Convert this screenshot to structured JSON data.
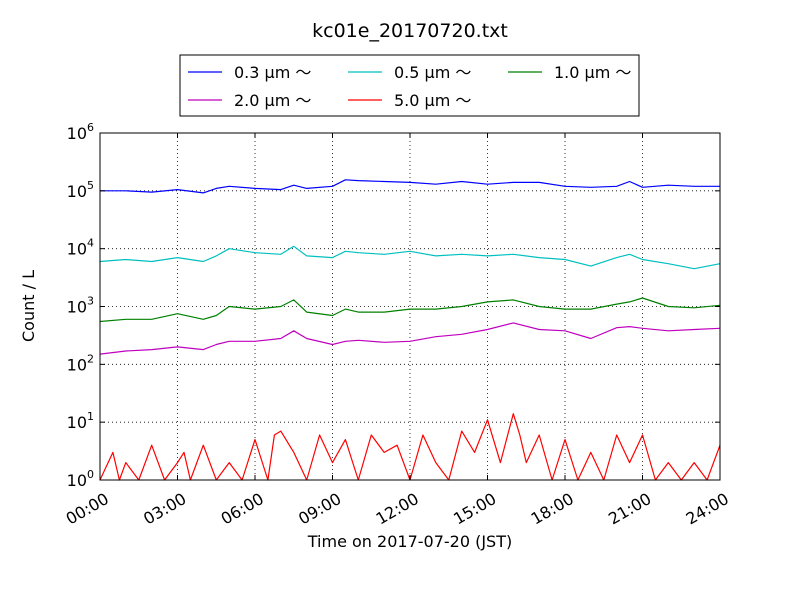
{
  "chart_data": {
    "type": "line",
    "title": "kc01e_20170720.txt",
    "xlabel": "Time on 2017-07-20 (JST)",
    "ylabel": "Count / L",
    "yscale": "log",
    "ylim": [
      1,
      1000000
    ],
    "xlim": [
      "00:00",
      "24:00"
    ],
    "x_ticks": [
      "00:00",
      "03:00",
      "06:00",
      "09:00",
      "12:00",
      "15:00",
      "18:00",
      "21:00",
      "24:00"
    ],
    "y_ticks": [
      {
        "base": "10",
        "exp": "0",
        "value": 1
      },
      {
        "base": "10",
        "exp": "1",
        "value": 10
      },
      {
        "base": "10",
        "exp": "2",
        "value": 100
      },
      {
        "base": "10",
        "exp": "3",
        "value": 1000
      },
      {
        "base": "10",
        "exp": "4",
        "value": 10000
      },
      {
        "base": "10",
        "exp": "5",
        "value": 100000
      },
      {
        "base": "10",
        "exp": "6",
        "value": 1000000
      }
    ],
    "grid": true,
    "legend_position": "top-center",
    "series": [
      {
        "name": "0.3 μm ～",
        "color": "#0000ff",
        "x": [
          "00:00",
          "01:00",
          "02:00",
          "03:00",
          "04:00",
          "04:30",
          "05:00",
          "06:00",
          "07:00",
          "07:30",
          "08:00",
          "09:00",
          "09:30",
          "10:00",
          "11:00",
          "12:00",
          "13:00",
          "14:00",
          "15:00",
          "16:00",
          "17:00",
          "18:00",
          "19:00",
          "20:00",
          "20:30",
          "21:00",
          "22:00",
          "23:00",
          "24:00"
        ],
        "values": [
          100000,
          100000,
          95000,
          105000,
          92000,
          110000,
          120000,
          110000,
          105000,
          125000,
          110000,
          120000,
          155000,
          150000,
          145000,
          140000,
          130000,
          145000,
          130000,
          140000,
          140000,
          120000,
          115000,
          120000,
          145000,
          115000,
          125000,
          120000,
          120000
        ]
      },
      {
        "name": "0.5 μm ～",
        "color": "#00bfbf",
        "x": [
          "00:00",
          "01:00",
          "02:00",
          "03:00",
          "04:00",
          "04:30",
          "05:00",
          "06:00",
          "07:00",
          "07:30",
          "08:00",
          "09:00",
          "09:30",
          "10:00",
          "11:00",
          "12:00",
          "13:00",
          "14:00",
          "15:00",
          "16:00",
          "17:00",
          "18:00",
          "19:00",
          "20:00",
          "20:30",
          "21:00",
          "22:00",
          "23:00",
          "24:00"
        ],
        "values": [
          6000,
          6500,
          6000,
          7000,
          6000,
          7500,
          10000,
          8500,
          8000,
          11000,
          7500,
          7000,
          9000,
          8500,
          8000,
          9000,
          7500,
          8000,
          7500,
          8000,
          7000,
          6500,
          5000,
          7000,
          8000,
          6500,
          5500,
          4500,
          5500
        ]
      },
      {
        "name": "1.0 μm ～",
        "color": "#008000",
        "x": [
          "00:00",
          "01:00",
          "02:00",
          "03:00",
          "04:00",
          "04:30",
          "05:00",
          "06:00",
          "07:00",
          "07:30",
          "08:00",
          "09:00",
          "09:30",
          "10:00",
          "11:00",
          "12:00",
          "13:00",
          "14:00",
          "15:00",
          "16:00",
          "17:00",
          "18:00",
          "19:00",
          "20:00",
          "20:30",
          "21:00",
          "22:00",
          "23:00",
          "24:00"
        ],
        "values": [
          550,
          600,
          600,
          750,
          600,
          700,
          1000,
          900,
          1000,
          1300,
          800,
          700,
          900,
          800,
          800,
          900,
          900,
          1000,
          1200,
          1300,
          1000,
          900,
          900,
          1100,
          1200,
          1400,
          1000,
          950,
          1050
        ]
      },
      {
        "name": "2.0 μm ～",
        "color": "#bf00bf",
        "x": [
          "00:00",
          "01:00",
          "02:00",
          "03:00",
          "04:00",
          "04:30",
          "05:00",
          "06:00",
          "07:00",
          "07:30",
          "08:00",
          "09:00",
          "09:30",
          "10:00",
          "11:00",
          "12:00",
          "13:00",
          "14:00",
          "15:00",
          "16:00",
          "17:00",
          "18:00",
          "19:00",
          "20:00",
          "20:30",
          "21:00",
          "22:00",
          "23:00",
          "24:00"
        ],
        "values": [
          150,
          170,
          180,
          200,
          180,
          220,
          250,
          250,
          280,
          380,
          280,
          220,
          250,
          260,
          240,
          250,
          300,
          330,
          400,
          520,
          400,
          380,
          280,
          430,
          450,
          420,
          380,
          400,
          420
        ]
      },
      {
        "name": "5.0 μm ～",
        "color": "#ff0000",
        "x": [
          "00:00",
          "00:30",
          "00:45",
          "01:00",
          "01:30",
          "02:00",
          "02:30",
          "03:00",
          "03:15",
          "03:30",
          "04:00",
          "04:30",
          "05:00",
          "05:30",
          "06:00",
          "06:30",
          "06:45",
          "07:00",
          "07:30",
          "08:00",
          "08:30",
          "09:00",
          "09:30",
          "10:00",
          "10:30",
          "11:00",
          "11:30",
          "12:00",
          "12:30",
          "13:00",
          "13:30",
          "14:00",
          "14:30",
          "15:00",
          "15:30",
          "16:00",
          "16:15",
          "16:30",
          "17:00",
          "17:30",
          "18:00",
          "18:30",
          "19:00",
          "19:30",
          "20:00",
          "20:30",
          "21:00",
          "21:30",
          "22:00",
          "22:30",
          "23:00",
          "23:30",
          "24:00"
        ],
        "values": [
          1,
          3,
          1,
          2,
          1,
          4,
          1,
          2,
          3,
          1,
          4,
          1,
          2,
          1,
          5,
          1,
          6,
          7,
          3,
          1,
          6,
          2,
          5,
          1,
          6,
          3,
          4,
          1,
          6,
          2,
          1,
          7,
          3,
          11,
          2,
          14,
          6,
          2,
          6,
          1,
          5,
          1,
          3,
          1,
          6,
          2,
          6,
          1,
          2,
          1,
          2,
          1,
          4
        ]
      }
    ]
  }
}
